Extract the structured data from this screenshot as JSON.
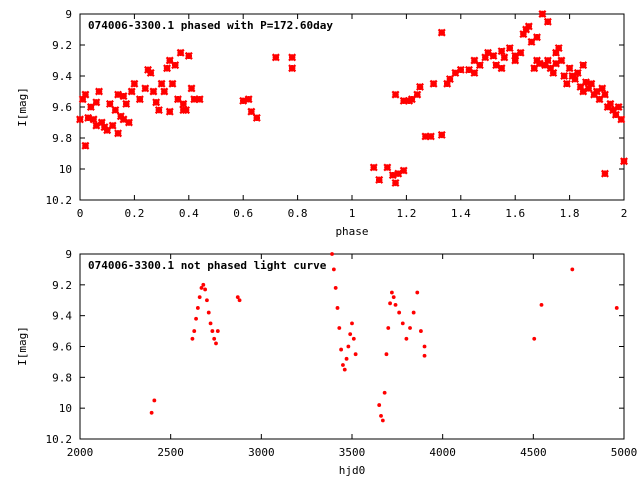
{
  "chart_data": [
    {
      "type": "scatter",
      "title": "074006-3300.1 phased with P=172.60day",
      "xlabel": "phase",
      "ylabel": "I[mag]",
      "xlim": [
        0,
        2
      ],
      "ylim": [
        10.2,
        9
      ],
      "x_ticks": [
        "0",
        "0.2",
        "0.4",
        "0.6",
        "0.8",
        "1",
        "1.2",
        "1.4",
        "1.6",
        "1.8",
        "2"
      ],
      "y_ticks": [
        "9",
        "9.2",
        "9.4",
        "9.6",
        "9.8",
        "10",
        "10.2"
      ],
      "marker": "filled-cross",
      "color": "#ff0000",
      "points": [
        [
          0.0,
          9.68
        ],
        [
          0.01,
          9.55
        ],
        [
          0.02,
          9.52
        ],
        [
          0.03,
          9.67
        ],
        [
          0.04,
          9.6
        ],
        [
          0.05,
          9.68
        ],
        [
          0.06,
          9.57
        ],
        [
          0.07,
          9.5
        ],
        [
          0.08,
          9.7
        ],
        [
          0.09,
          9.73
        ],
        [
          0.1,
          9.75
        ],
        [
          0.11,
          9.58
        ],
        [
          0.12,
          9.72
        ],
        [
          0.13,
          9.62
        ],
        [
          0.14,
          9.52
        ],
        [
          0.15,
          9.66
        ],
        [
          0.16,
          9.53
        ],
        [
          0.17,
          9.58
        ],
        [
          0.18,
          9.7
        ],
        [
          0.19,
          9.5
        ],
        [
          0.2,
          9.45
        ],
        [
          0.22,
          9.55
        ],
        [
          0.24,
          9.48
        ],
        [
          0.25,
          9.36
        ],
        [
          0.26,
          9.38
        ],
        [
          0.27,
          9.5
        ],
        [
          0.28,
          9.57
        ],
        [
          0.29,
          9.62
        ],
        [
          0.3,
          9.45
        ],
        [
          0.31,
          9.5
        ],
        [
          0.32,
          9.35
        ],
        [
          0.33,
          9.3
        ],
        [
          0.34,
          9.45
        ],
        [
          0.35,
          9.33
        ],
        [
          0.36,
          9.55
        ],
        [
          0.37,
          9.25
        ],
        [
          0.38,
          9.58
        ],
        [
          0.39,
          9.62
        ],
        [
          0.4,
          9.27
        ],
        [
          0.41,
          9.48
        ],
        [
          0.42,
          9.55
        ],
        [
          0.44,
          9.55
        ],
        [
          0.6,
          9.56
        ],
        [
          0.62,
          9.55
        ],
        [
          0.63,
          9.63
        ],
        [
          0.65,
          9.67
        ],
        [
          0.72,
          9.28
        ],
        [
          0.78,
          9.28
        ],
        [
          0.78,
          9.35
        ],
        [
          0.02,
          9.85
        ],
        [
          0.06,
          9.72
        ],
        [
          0.14,
          9.77
        ],
        [
          0.16,
          9.68
        ],
        [
          0.33,
          9.63
        ],
        [
          0.38,
          9.62
        ],
        [
          1.08,
          9.99
        ],
        [
          1.1,
          10.07
        ],
        [
          1.13,
          9.99
        ],
        [
          1.15,
          10.04
        ],
        [
          1.16,
          10.09
        ],
        [
          1.17,
          10.03
        ],
        [
          1.19,
          10.01
        ],
        [
          1.16,
          9.52
        ],
        [
          1.19,
          9.56
        ],
        [
          1.21,
          9.56
        ],
        [
          1.22,
          9.55
        ],
        [
          1.24,
          9.52
        ],
        [
          1.25,
          9.47
        ],
        [
          1.27,
          9.79
        ],
        [
          1.29,
          9.79
        ],
        [
          1.3,
          9.45
        ],
        [
          1.33,
          9.78
        ],
        [
          1.33,
          9.12
        ],
        [
          1.35,
          9.45
        ],
        [
          1.36,
          9.42
        ],
        [
          1.38,
          9.38
        ],
        [
          1.4,
          9.36
        ],
        [
          1.43,
          9.36
        ],
        [
          1.45,
          9.3
        ],
        [
          1.47,
          9.33
        ],
        [
          1.49,
          9.28
        ],
        [
          1.5,
          9.25
        ],
        [
          1.52,
          9.27
        ],
        [
          1.53,
          9.33
        ],
        [
          1.55,
          9.24
        ],
        [
          1.56,
          9.28
        ],
        [
          1.58,
          9.22
        ],
        [
          1.6,
          9.27
        ],
        [
          1.62,
          9.25
        ],
        [
          1.63,
          9.13
        ],
        [
          1.64,
          9.1
        ],
        [
          1.65,
          9.08
        ],
        [
          1.66,
          9.18
        ],
        [
          1.67,
          9.35
        ],
        [
          1.68,
          9.3
        ],
        [
          1.69,
          9.32
        ],
        [
          1.7,
          9.0
        ],
        [
          1.71,
          9.33
        ],
        [
          1.72,
          9.3
        ],
        [
          1.73,
          9.35
        ],
        [
          1.74,
          9.38
        ],
        [
          1.75,
          9.32
        ],
        [
          1.76,
          9.22
        ],
        [
          1.77,
          9.3
        ],
        [
          1.78,
          9.4
        ],
        [
          1.79,
          9.45
        ],
        [
          1.8,
          9.35
        ],
        [
          1.81,
          9.4
        ],
        [
          1.82,
          9.42
        ],
        [
          1.83,
          9.38
        ],
        [
          1.84,
          9.47
        ],
        [
          1.85,
          9.5
        ],
        [
          1.86,
          9.44
        ],
        [
          1.87,
          9.48
        ],
        [
          1.88,
          9.45
        ],
        [
          1.89,
          9.52
        ],
        [
          1.9,
          9.5
        ],
        [
          1.91,
          9.55
        ],
        [
          1.92,
          9.48
        ],
        [
          1.93,
          9.52
        ],
        [
          1.94,
          9.6
        ],
        [
          1.95,
          9.58
        ],
        [
          1.96,
          9.62
        ],
        [
          1.97,
          9.65
        ],
        [
          1.98,
          9.6
        ],
        [
          1.99,
          9.68
        ],
        [
          1.93,
          10.03
        ],
        [
          2.0,
          9.95
        ],
        [
          1.85,
          9.33
        ],
        [
          1.75,
          9.25
        ],
        [
          1.72,
          9.05
        ],
        [
          1.68,
          9.15
        ],
        [
          1.55,
          9.35
        ],
        [
          1.6,
          9.3
        ],
        [
          1.45,
          9.38
        ]
      ]
    },
    {
      "type": "scatter",
      "title": "074006-3300.1 not phased light curve",
      "xlabel": "hjd0",
      "ylabel": "I[mag]",
      "xlim": [
        2000,
        5000
      ],
      "ylim": [
        10.2,
        9
      ],
      "x_ticks": [
        "2000",
        "2500",
        "3000",
        "3500",
        "4000",
        "4500",
        "5000"
      ],
      "y_ticks": [
        "9",
        "9.2",
        "9.4",
        "9.6",
        "9.8",
        "10",
        "10.2"
      ],
      "marker": "filled-dot",
      "color": "#ff0000",
      "points": [
        [
          2395,
          10.03
        ],
        [
          2410,
          9.95
        ],
        [
          2620,
          9.55
        ],
        [
          2630,
          9.5
        ],
        [
          2640,
          9.42
        ],
        [
          2650,
          9.35
        ],
        [
          2660,
          9.28
        ],
        [
          2670,
          9.22
        ],
        [
          2680,
          9.2
        ],
        [
          2690,
          9.23
        ],
        [
          2700,
          9.3
        ],
        [
          2710,
          9.38
        ],
        [
          2720,
          9.45
        ],
        [
          2730,
          9.5
        ],
        [
          2740,
          9.55
        ],
        [
          2750,
          9.58
        ],
        [
          2760,
          9.5
        ],
        [
          2870,
          9.28
        ],
        [
          2880,
          9.3
        ],
        [
          3390,
          9.0
        ],
        [
          3400,
          9.1
        ],
        [
          3410,
          9.22
        ],
        [
          3420,
          9.35
        ],
        [
          3430,
          9.48
        ],
        [
          3440,
          9.62
        ],
        [
          3450,
          9.72
        ],
        [
          3460,
          9.75
        ],
        [
          3470,
          9.68
        ],
        [
          3480,
          9.6
        ],
        [
          3490,
          9.52
        ],
        [
          3500,
          9.45
        ],
        [
          3510,
          9.55
        ],
        [
          3520,
          9.65
        ],
        [
          3650,
          9.98
        ],
        [
          3660,
          10.05
        ],
        [
          3670,
          10.08
        ],
        [
          3680,
          9.9
        ],
        [
          3690,
          9.65
        ],
        [
          3700,
          9.48
        ],
        [
          3710,
          9.32
        ],
        [
          3720,
          9.25
        ],
        [
          3730,
          9.28
        ],
        [
          3740,
          9.33
        ],
        [
          3760,
          9.38
        ],
        [
          3780,
          9.45
        ],
        [
          3800,
          9.55
        ],
        [
          3820,
          9.48
        ],
        [
          3840,
          9.38
        ],
        [
          3860,
          9.25
        ],
        [
          3880,
          9.5
        ],
        [
          3900,
          9.6
        ],
        [
          3900,
          9.66
        ],
        [
          4505,
          9.55
        ],
        [
          4545,
          9.33
        ],
        [
          4715,
          9.1
        ],
        [
          4960,
          9.35
        ]
      ]
    }
  ]
}
